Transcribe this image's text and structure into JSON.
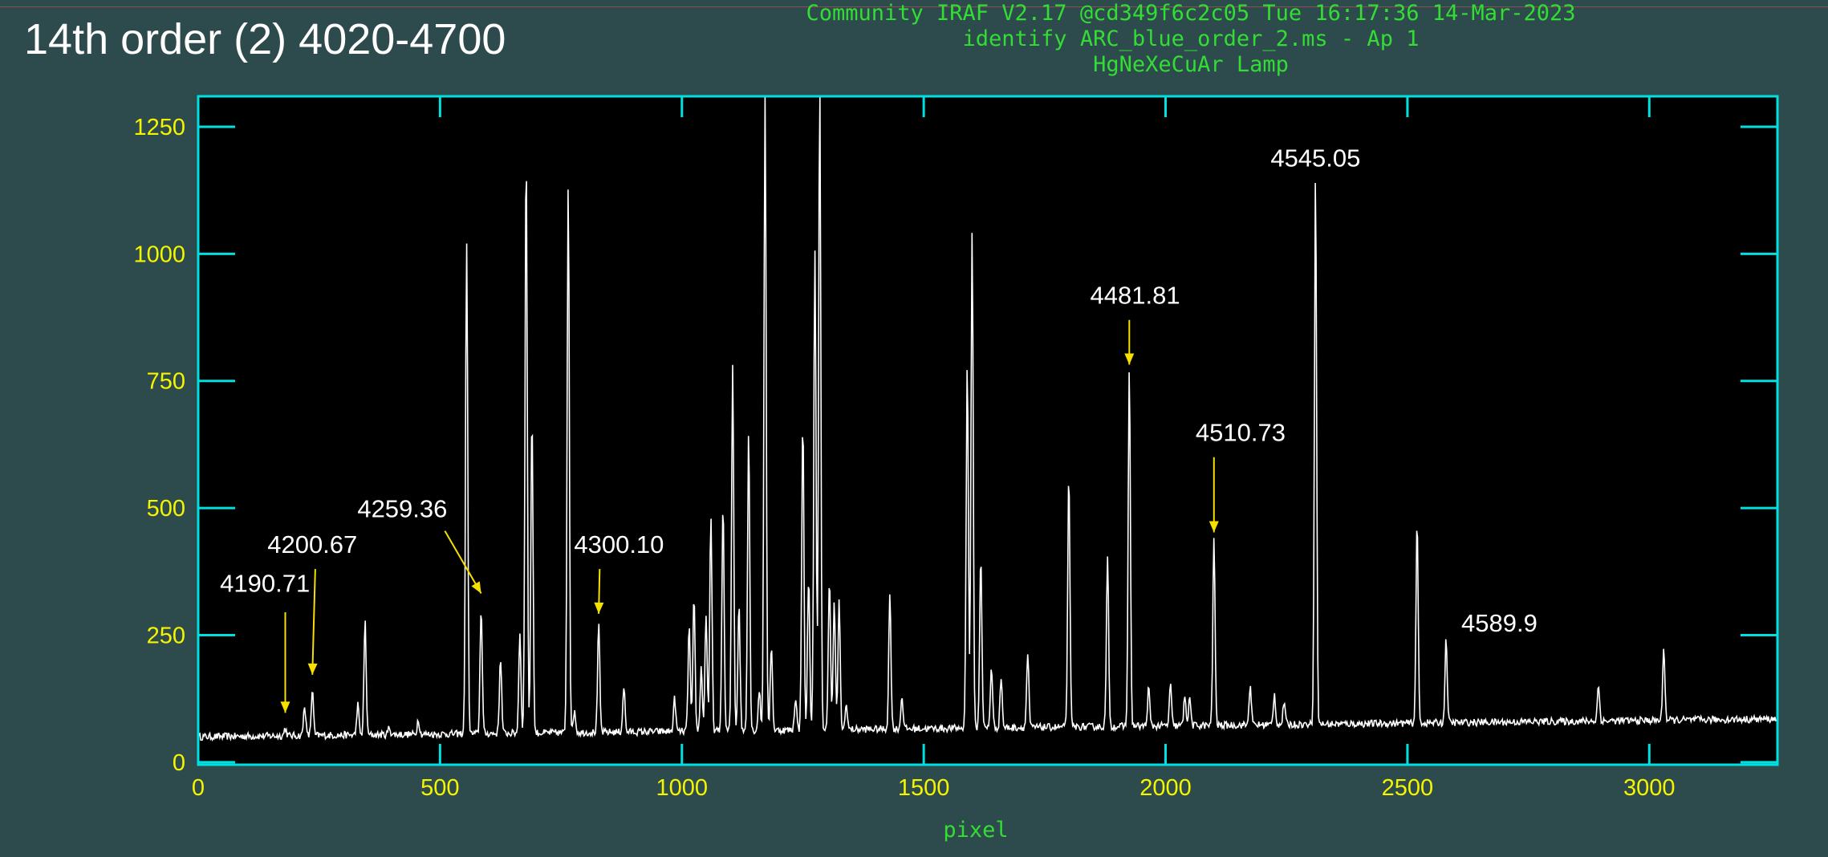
{
  "slide_title": "14th order (2) 4020-4700",
  "header_lines": [
    "Community IRAF V2.17 @cd349f6c2c05 Tue 16:17:36 14-Mar-2023",
    "identify ARC_blue_order_2.ms - Ap 1",
    "HgNeXeCuAr Lamp"
  ],
  "colors": {
    "background": "#2d4b4d",
    "frame": "#00e0e0",
    "tick_labels": "#f5f500",
    "header_text": "#33dd33",
    "spectrum": "#ffffff",
    "arrows": "#f5e000"
  },
  "chart_data": {
    "type": "line",
    "xlabel": "pixel",
    "ylabel": "",
    "xlim": [
      0,
      3265
    ],
    "ylim": [
      -5,
      1310
    ],
    "x_ticks": [
      0,
      500,
      1000,
      1500,
      2000,
      2500,
      3000
    ],
    "y_ticks": [
      0,
      250,
      500,
      750,
      1000,
      1250
    ],
    "grid": false,
    "baseline": {
      "start": 50,
      "end": 85
    },
    "peaks": [
      {
        "x": 180,
        "y": 75
      },
      {
        "x": 220,
        "y": 120
      },
      {
        "x": 236,
        "y": 150
      },
      {
        "x": 330,
        "y": 120
      },
      {
        "x": 345,
        "y": 285
      },
      {
        "x": 395,
        "y": 75
      },
      {
        "x": 455,
        "y": 90
      },
      {
        "x": 555,
        "y": 1030
      },
      {
        "x": 585,
        "y": 310
      },
      {
        "x": 625,
        "y": 210
      },
      {
        "x": 665,
        "y": 255
      },
      {
        "x": 678,
        "y": 1210
      },
      {
        "x": 690,
        "y": 690
      },
      {
        "x": 765,
        "y": 1140
      },
      {
        "x": 778,
        "y": 105
      },
      {
        "x": 828,
        "y": 270
      },
      {
        "x": 880,
        "y": 150
      },
      {
        "x": 985,
        "y": 125
      },
      {
        "x": 1015,
        "y": 265
      },
      {
        "x": 1025,
        "y": 320
      },
      {
        "x": 1040,
        "y": 185
      },
      {
        "x": 1050,
        "y": 290
      },
      {
        "x": 1060,
        "y": 480
      },
      {
        "x": 1085,
        "y": 505
      },
      {
        "x": 1105,
        "y": 780
      },
      {
        "x": 1118,
        "y": 310
      },
      {
        "x": 1138,
        "y": 650
      },
      {
        "x": 1160,
        "y": 140
      },
      {
        "x": 1172,
        "y": 1320
      },
      {
        "x": 1185,
        "y": 230
      },
      {
        "x": 1235,
        "y": 125
      },
      {
        "x": 1250,
        "y": 670
      },
      {
        "x": 1262,
        "y": 360
      },
      {
        "x": 1275,
        "y": 1010
      },
      {
        "x": 1285,
        "y": 1320
      },
      {
        "x": 1305,
        "y": 360
      },
      {
        "x": 1315,
        "y": 310
      },
      {
        "x": 1325,
        "y": 310
      },
      {
        "x": 1340,
        "y": 110
      },
      {
        "x": 1430,
        "y": 325
      },
      {
        "x": 1455,
        "y": 125
      },
      {
        "x": 1590,
        "y": 780
      },
      {
        "x": 1600,
        "y": 1030
      },
      {
        "x": 1618,
        "y": 400
      },
      {
        "x": 1640,
        "y": 180
      },
      {
        "x": 1660,
        "y": 160
      },
      {
        "x": 1715,
        "y": 205
      },
      {
        "x": 1800,
        "y": 560
      },
      {
        "x": 1880,
        "y": 390
      },
      {
        "x": 1925,
        "y": 760
      },
      {
        "x": 1965,
        "y": 135
      },
      {
        "x": 2010,
        "y": 140
      },
      {
        "x": 2040,
        "y": 120
      },
      {
        "x": 2050,
        "y": 115
      },
      {
        "x": 2100,
        "y": 430
      },
      {
        "x": 2175,
        "y": 140
      },
      {
        "x": 2225,
        "y": 120
      },
      {
        "x": 2245,
        "y": 105
      },
      {
        "x": 2310,
        "y": 1140
      },
      {
        "x": 2520,
        "y": 455
      },
      {
        "x": 2580,
        "y": 225
      },
      {
        "x": 2895,
        "y": 130
      },
      {
        "x": 3030,
        "y": 205
      }
    ],
    "annotations": [
      {
        "label": "4190.71",
        "x": 180,
        "y": 75,
        "text_x": 138,
        "text_y": 335,
        "bend_x": 180,
        "bend_y": 295
      },
      {
        "label": "4200.67",
        "x": 236,
        "y": 150,
        "text_x": 236,
        "text_y": 412,
        "bend_x": 242,
        "bend_y": 380
      },
      {
        "label": "4259.36",
        "x": 585,
        "y": 310,
        "text_x": 422,
        "text_y": 482,
        "bend_x": 510,
        "bend_y": 455
      },
      {
        "label": "4300.10",
        "x": 828,
        "y": 270,
        "text_x": 870,
        "text_y": 412,
        "bend_x": 830,
        "bend_y": 380
      },
      {
        "label": "4481.81",
        "x": 1925,
        "y": 760,
        "text_x": 1937,
        "text_y": 902,
        "bend_x": 1925,
        "bend_y": 870
      },
      {
        "label": "4510.73",
        "x": 2100,
        "y": 430,
        "text_x": 2155,
        "text_y": 632,
        "bend_x": 2100,
        "bend_y": 600
      },
      {
        "label": "4545.05",
        "x": 2310,
        "y": 1140,
        "text_x": 2310,
        "text_y": 1172,
        "bend_x": null,
        "bend_y": null
      },
      {
        "label": "4589.9",
        "x": 2580,
        "y": 225,
        "text_x": 2690,
        "text_y": 257,
        "bend_x": null,
        "bend_y": null
      }
    ]
  }
}
